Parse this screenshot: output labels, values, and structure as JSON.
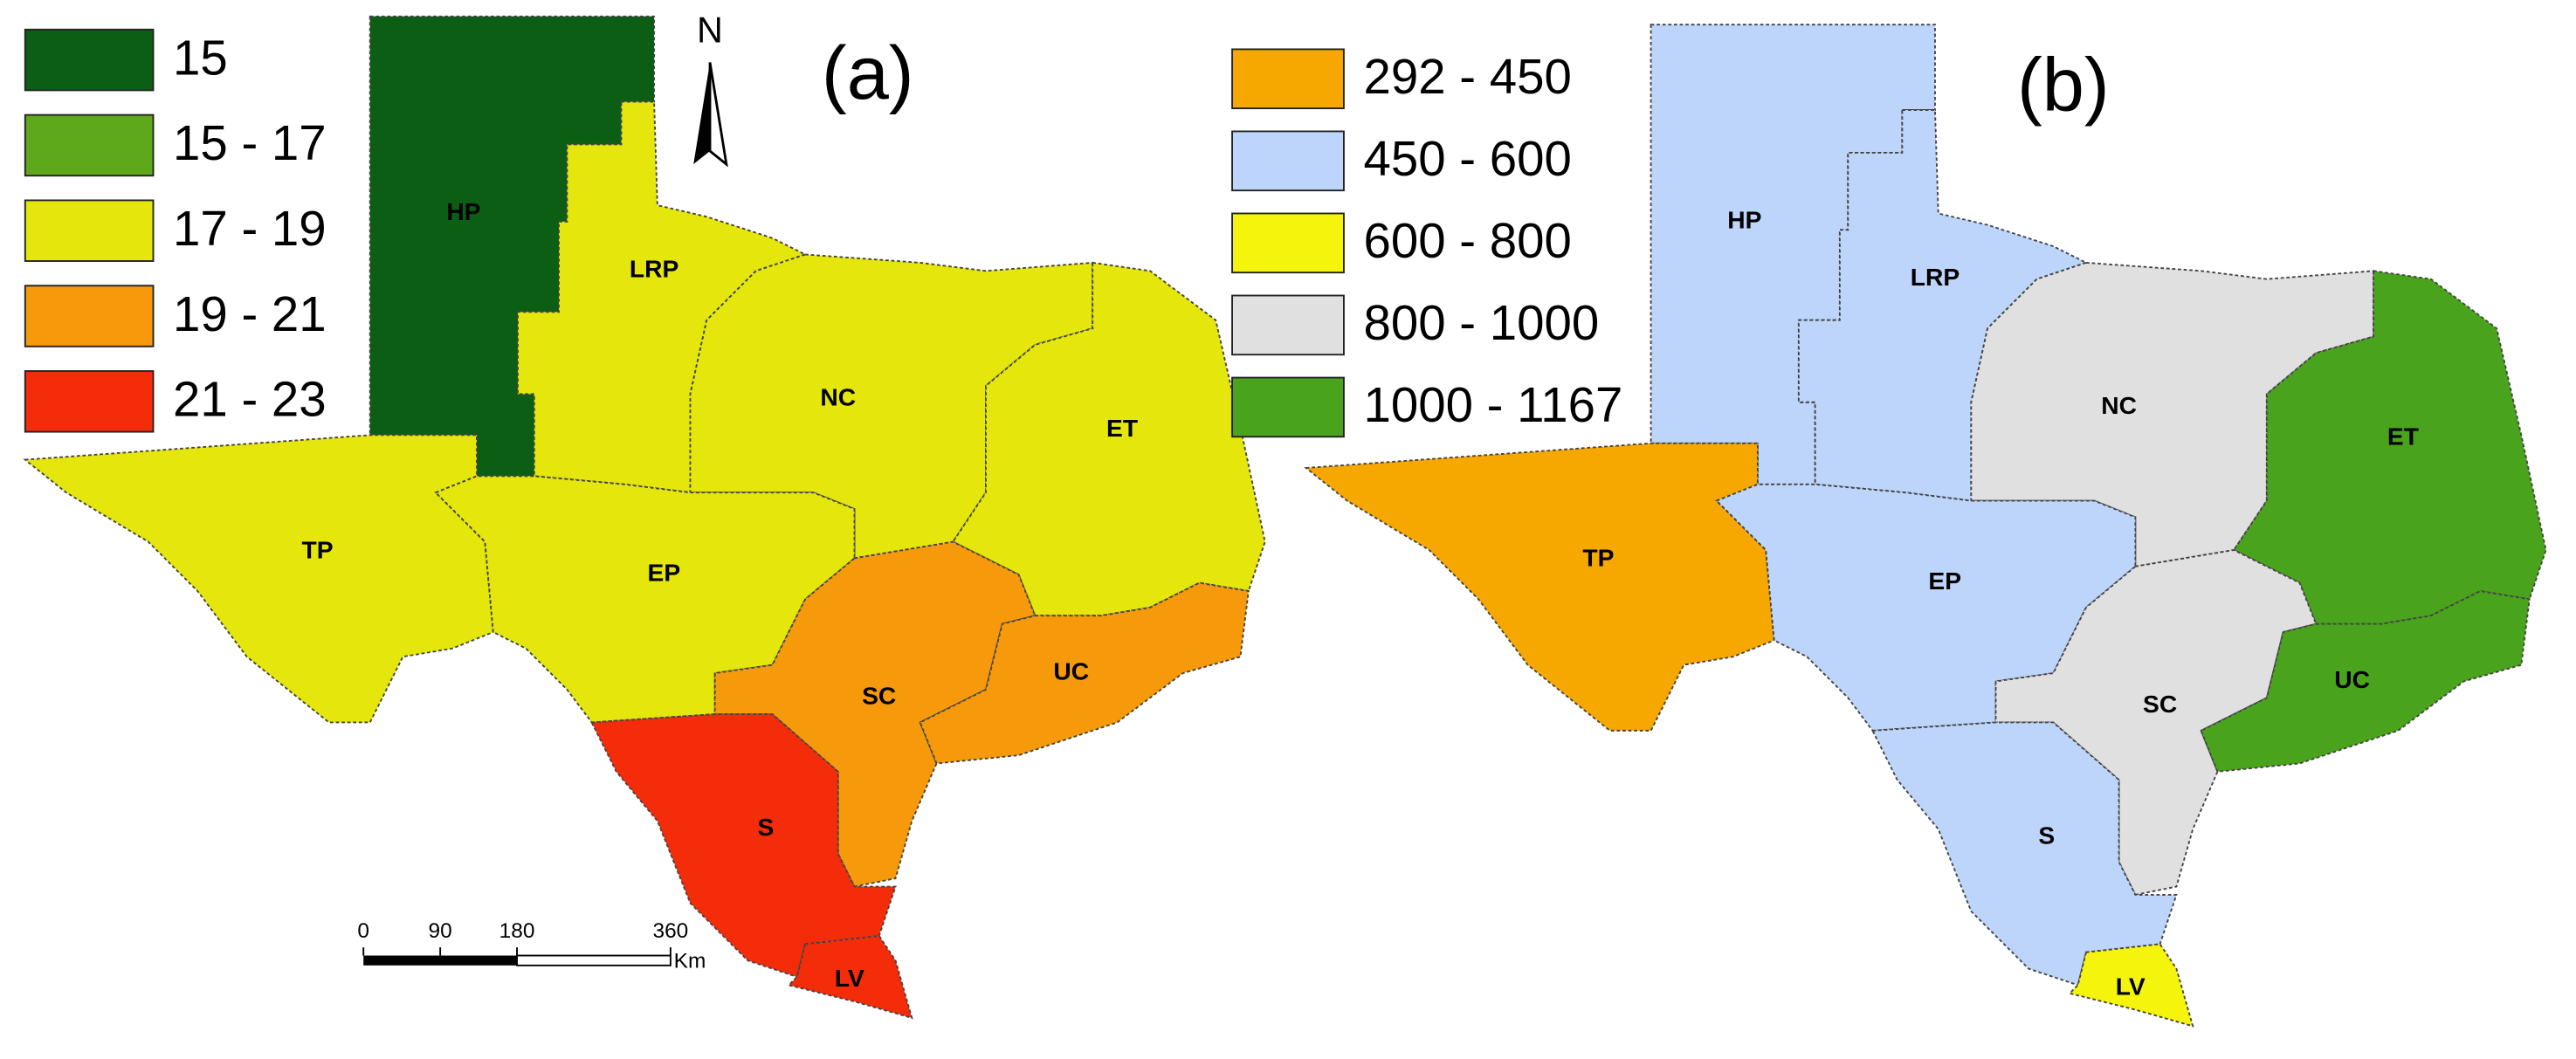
{
  "panels": [
    {
      "label": "(a)",
      "legend": [
        {
          "label": "15",
          "color": "#0b5e14"
        },
        {
          "label": "15 - 17",
          "color": "#5ea81c"
        },
        {
          "label": "17 - 19",
          "color": "#e4e60c"
        },
        {
          "label": "19 - 21",
          "color": "#f69a0c"
        },
        {
          "label": "21 - 23",
          "color": "#f42c0a"
        }
      ],
      "regions": [
        {
          "label": "HP",
          "color": "#0b5e14"
        },
        {
          "label": "LRP",
          "color": "#e4e60c"
        },
        {
          "label": "NC",
          "color": "#e4e60c"
        },
        {
          "label": "ET",
          "color": "#e4e60c"
        },
        {
          "label": "TP",
          "color": "#e4e60c"
        },
        {
          "label": "EP",
          "color": "#e4e60c"
        },
        {
          "label": "SC",
          "color": "#f69a0c"
        },
        {
          "label": "UC",
          "color": "#f69a0c"
        },
        {
          "label": "S",
          "color": "#f42c0a"
        },
        {
          "label": "LV",
          "color": "#f42c0a"
        }
      ]
    },
    {
      "label": "(b)",
      "legend": [
        {
          "label": "292 - 450",
          "color": "#f7a800"
        },
        {
          "label": "450 - 600",
          "color": "#bdd5fa"
        },
        {
          "label": "600 - 800",
          "color": "#f4f40c"
        },
        {
          "label": "800 - 1000",
          "color": "#e0e0e0"
        },
        {
          "label": "1000 - 1167",
          "color": "#4aa31c"
        }
      ],
      "regions": [
        {
          "label": "HP",
          "color": "#bdd5fa"
        },
        {
          "label": "LRP",
          "color": "#bdd5fa"
        },
        {
          "label": "NC",
          "color": "#e0e0e0"
        },
        {
          "label": "ET",
          "color": "#4aa31c"
        },
        {
          "label": "TP",
          "color": "#f7a800"
        },
        {
          "label": "EP",
          "color": "#bdd5fa"
        },
        {
          "label": "SC",
          "color": "#e0e0e0"
        },
        {
          "label": "UC",
          "color": "#4aa31c"
        },
        {
          "label": "S",
          "color": "#bdd5fa"
        },
        {
          "label": "LV",
          "color": "#f4f40c"
        }
      ]
    }
  ],
  "north_arrow": "N",
  "scale_bar": {
    "ticks": [
      0,
      90,
      180,
      360
    ],
    "unit": "Km"
  }
}
